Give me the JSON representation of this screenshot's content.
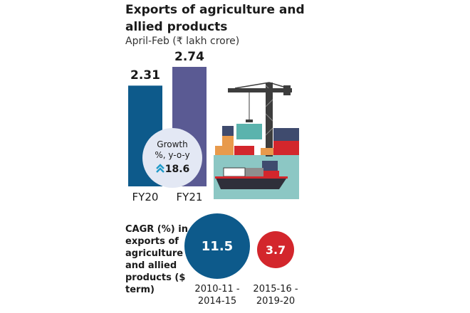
{
  "chart_data": {
    "type": "bar",
    "title": "Exports of agriculture and allied products",
    "subtitle": "April-Feb (₹ lakh crore)",
    "categories": [
      "FY20",
      "FY21"
    ],
    "values": [
      2.31,
      2.74
    ],
    "value_labels": [
      "2.31",
      "2.74"
    ],
    "ylim": [
      0,
      2.74
    ],
    "colors": [
      "#0d5a8b",
      "#5a5a93"
    ],
    "growth": {
      "label_line1": "Growth",
      "label_line2": "%, y-o-y",
      "value": "18.6",
      "icon": "double-chevron-up-icon"
    }
  },
  "cagr": {
    "label": "CAGR (%) in exports of agriculture and allied products ($ term)",
    "items": [
      {
        "value": "11.5",
        "period_line1": "2010-11 -",
        "period_line2": "2014-15",
        "color": "#0d5a8b"
      },
      {
        "value": "3.7",
        "period_line1": "2015-16 -",
        "period_line2": "2019-20",
        "color": "#d3262c"
      }
    ]
  },
  "illustration": {
    "icon": "port-crane-cargo-ship-icon",
    "accent": "#8cc7c4"
  }
}
